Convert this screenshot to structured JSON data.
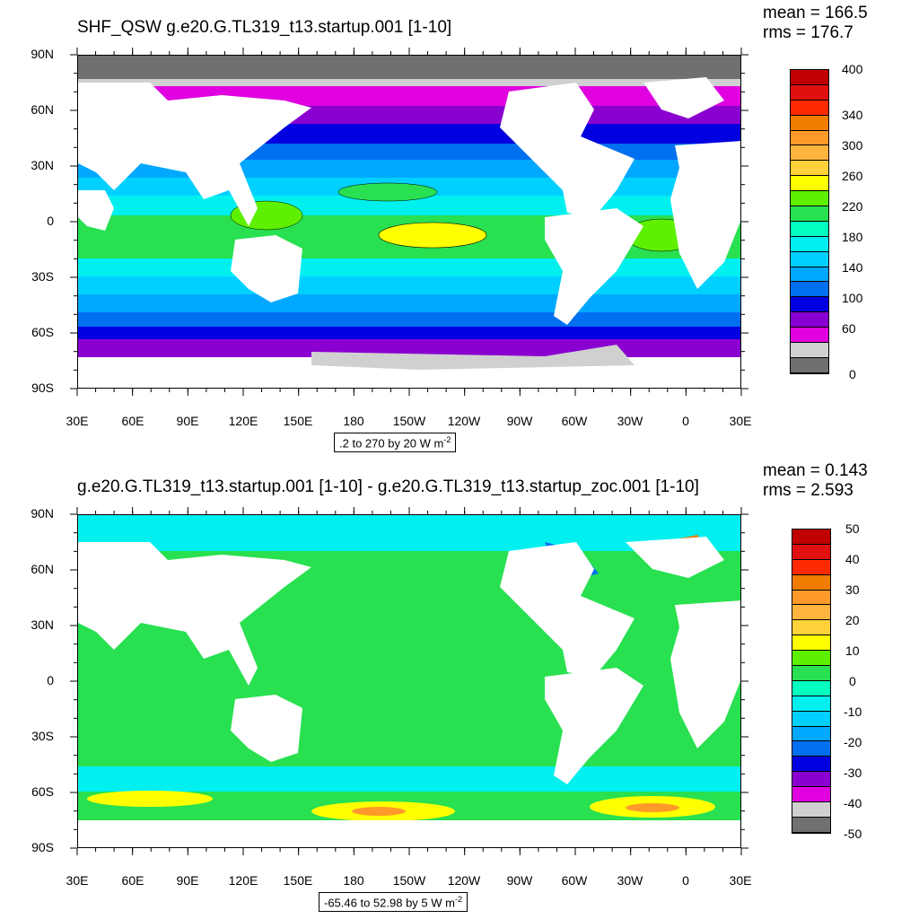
{
  "top": {
    "title": "SHF_QSW g.e20.G.TL319_t13.startup.001 [1-10]",
    "mean": "mean = 166.5",
    "rms": "rms = 176.7",
    "info": ".2 to 270 by 20  W m",
    "info_exp": "-2",
    "colorbar_labels": [
      "400",
      "340",
      "300",
      "260",
      "220",
      "180",
      "140",
      "100",
      "60",
      "0"
    ],
    "colorbar_colors": [
      "#c00000",
      "#e01010",
      "#ff2a00",
      "#f07c00",
      "#ff9a2a",
      "#ffb440",
      "#ffd23a",
      "#ffff00",
      "#5ef000",
      "#28e050",
      "#00ffc0",
      "#00f0f0",
      "#00d0ff",
      "#00a8ff",
      "#0070f0",
      "#0000e0",
      "#8a00d0",
      "#e000e0",
      "#d0d0d0",
      "#707070"
    ]
  },
  "bottom": {
    "title": "g.e20.G.TL319_t13.startup.001 [1-10] - g.e20.G.TL319_t13.startup_zoc.001 [1-10]",
    "mean": "mean = 0.143",
    "rms": "rms = 2.593",
    "info": "-65.46 to 52.98 by 5  W m",
    "info_exp": "-2",
    "colorbar_labels": [
      "50",
      "40",
      "30",
      "20",
      "10",
      "0",
      "-10",
      "-20",
      "-30",
      "-40",
      "-50"
    ],
    "colorbar_colors": [
      "#c00000",
      "#e01010",
      "#ff2a00",
      "#f07c00",
      "#ff9a2a",
      "#ffb440",
      "#ffd23a",
      "#ffff00",
      "#5ef000",
      "#28e050",
      "#00ffc0",
      "#00f0f0",
      "#00d0ff",
      "#00a8ff",
      "#0070f0",
      "#0000e0",
      "#8a00d0",
      "#e000e0",
      "#d0d0d0",
      "#707070"
    ]
  },
  "axes": {
    "lat_labels": [
      "90N",
      "60N",
      "30N",
      "0",
      "30S",
      "60S",
      "90S"
    ],
    "lon_labels": [
      "30E",
      "60E",
      "90E",
      "120E",
      "150E",
      "180",
      "150W",
      "120W",
      "90W",
      "60W",
      "30W",
      "0",
      "30E"
    ]
  }
}
